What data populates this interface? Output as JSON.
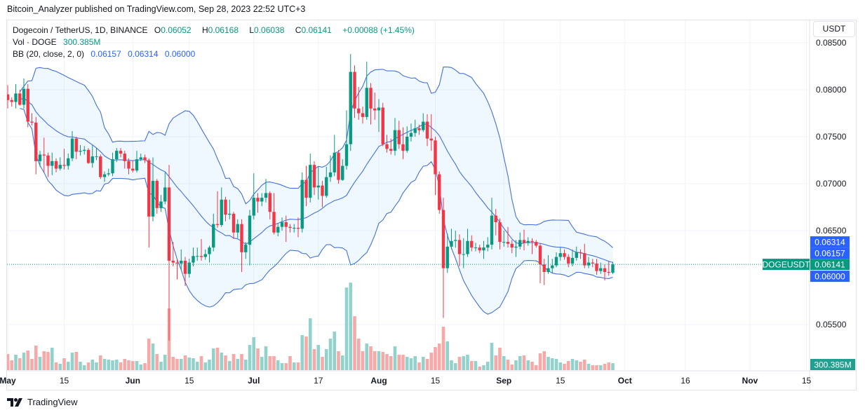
{
  "attribution": "Bitcoin_Analyzer published on TradingView.com, Sep 28, 2023 22:52 UTC+3",
  "legend": {
    "symbol": "Dogecoin / TetherUS, 1D, BINANCE",
    "o_label": "O",
    "o": "0.06052",
    "h_label": "H",
    "h": "0.06168",
    "l_label": "L",
    "l": "0.06038",
    "c_label": "C",
    "c": "0.06141",
    "change": "+0.00088 (+1.45%)",
    "vol_label": "Vol · DOGE",
    "vol": "300.385M",
    "bb_label": "BB (20, close, 2, 0)",
    "bb_basis": "0.06157",
    "bb_upper": "0.06314",
    "bb_lower": "0.06000"
  },
  "currency_button": "USDT",
  "footer_logo": "TradingView",
  "colors": {
    "up": "#089981",
    "down": "#f23645",
    "bb": "#2962ff",
    "vol_up": "#92d2cc",
    "vol_down": "#f7a9a7",
    "grid": "#f0f3fa"
  },
  "chart_data": {
    "type": "candlestick",
    "symbol": "DOGEUSDT",
    "interval": "1D",
    "date_start": "2023-05-01",
    "date_end": "2023-09-28",
    "ylim": [
      0.0515,
      0.0875
    ],
    "y_ticks": [
      "0.08500",
      "0.08000",
      "0.07500",
      "0.07000",
      "0.06500",
      "0.05500"
    ],
    "x_ticks": [
      {
        "label": "May",
        "date": "2023-05-01",
        "bold": true
      },
      {
        "label": "15",
        "date": "2023-05-15",
        "bold": false
      },
      {
        "label": "Jun",
        "date": "2023-06-01",
        "bold": true
      },
      {
        "label": "15",
        "date": "2023-06-15",
        "bold": false
      },
      {
        "label": "Jul",
        "date": "2023-07-01",
        "bold": true
      },
      {
        "label": "17",
        "date": "2023-07-17",
        "bold": false
      },
      {
        "label": "Aug",
        "date": "2023-08-01",
        "bold": true
      },
      {
        "label": "15",
        "date": "2023-08-15",
        "bold": false
      },
      {
        "label": "Sep",
        "date": "2023-09-01",
        "bold": true
      },
      {
        "label": "15",
        "date": "2023-09-15",
        "bold": false
      },
      {
        "label": "Oct",
        "date": "2023-10-01",
        "bold": true
      },
      {
        "label": "16",
        "date": "2023-10-16",
        "bold": false
      },
      {
        "label": "Nov",
        "date": "2023-11-01",
        "bold": true
      },
      {
        "label": "15",
        "date": "2023-11-15",
        "bold": false
      }
    ],
    "price_labels": {
      "bb_upper": "0.06314",
      "bb_basis": "0.06157",
      "last": "0.06141",
      "bb_lower": "0.06000",
      "symbol_tag": "DOGEUSDT",
      "volume": "300.385M"
    },
    "last_price": 0.06141,
    "bollinger": {
      "period": 20,
      "mult": 2
    },
    "ohlc": [
      [
        0.0795,
        0.0805,
        0.078,
        0.0789
      ],
      [
        0.0789,
        0.0792,
        0.0782,
        0.0787
      ],
      [
        0.0787,
        0.0806,
        0.078,
        0.0796
      ],
      [
        0.0796,
        0.08,
        0.0783,
        0.0784
      ],
      [
        0.0784,
        0.0812,
        0.078,
        0.0801
      ],
      [
        0.0801,
        0.0806,
        0.076,
        0.0766
      ],
      [
        0.0766,
        0.0775,
        0.0762,
        0.0765
      ],
      [
        0.0765,
        0.0771,
        0.071,
        0.0724
      ],
      [
        0.0724,
        0.0735,
        0.0718,
        0.0731
      ],
      [
        0.0731,
        0.0749,
        0.0712,
        0.073
      ],
      [
        0.073,
        0.0733,
        0.0707,
        0.0719
      ],
      [
        0.0719,
        0.0733,
        0.0709,
        0.0724
      ],
      [
        0.0724,
        0.0727,
        0.0712,
        0.0716
      ],
      [
        0.0716,
        0.0728,
        0.0714,
        0.072
      ],
      [
        0.072,
        0.0737,
        0.0715,
        0.0719
      ],
      [
        0.0719,
        0.0732,
        0.0715,
        0.0727
      ],
      [
        0.0727,
        0.0756,
        0.0724,
        0.0748
      ],
      [
        0.0748,
        0.075,
        0.0726,
        0.0734
      ],
      [
        0.0734,
        0.0741,
        0.073,
        0.0735
      ],
      [
        0.0735,
        0.074,
        0.0731,
        0.0736
      ],
      [
        0.0736,
        0.0738,
        0.0721,
        0.0722
      ],
      [
        0.0722,
        0.0741,
        0.0717,
        0.0729
      ],
      [
        0.0729,
        0.0738,
        0.0725,
        0.0729
      ],
      [
        0.0729,
        0.0731,
        0.0705,
        0.0707
      ],
      [
        0.0707,
        0.0713,
        0.0702,
        0.071
      ],
      [
        0.071,
        0.0716,
        0.0708,
        0.0711
      ],
      [
        0.0711,
        0.0733,
        0.0708,
        0.0726
      ],
      [
        0.0726,
        0.0738,
        0.0723,
        0.0735
      ],
      [
        0.0735,
        0.0738,
        0.0728,
        0.0732
      ],
      [
        0.0732,
        0.0735,
        0.0716,
        0.0724
      ],
      [
        0.0724,
        0.0727,
        0.071,
        0.0716
      ],
      [
        0.0716,
        0.0725,
        0.0712,
        0.0714
      ],
      [
        0.0714,
        0.0735,
        0.0712,
        0.0726
      ],
      [
        0.0726,
        0.0732,
        0.0724,
        0.0728
      ],
      [
        0.0728,
        0.0731,
        0.0722,
        0.0725
      ],
      [
        0.0725,
        0.0727,
        0.0632,
        0.0665
      ],
      [
        0.0665,
        0.0728,
        0.066,
        0.0703
      ],
      [
        0.0703,
        0.0705,
        0.0668,
        0.0674
      ],
      [
        0.0674,
        0.0688,
        0.067,
        0.0681
      ],
      [
        0.0681,
        0.0712,
        0.0678,
        0.0696
      ],
      [
        0.0696,
        0.072,
        0.0533,
        0.0618
      ],
      [
        0.0618,
        0.0638,
        0.0612,
        0.0616
      ],
      [
        0.0616,
        0.062,
        0.0598,
        0.0615
      ],
      [
        0.0615,
        0.063,
        0.0608,
        0.0618
      ],
      [
        0.0618,
        0.0622,
        0.0591,
        0.0604
      ],
      [
        0.0604,
        0.062,
        0.06,
        0.0616
      ],
      [
        0.0616,
        0.0632,
        0.0612,
        0.0623
      ],
      [
        0.0623,
        0.0632,
        0.0618,
        0.0623
      ],
      [
        0.0623,
        0.0641,
        0.0618,
        0.0622
      ],
      [
        0.0622,
        0.063,
        0.0619,
        0.0625
      ],
      [
        0.0625,
        0.0634,
        0.0616,
        0.0632
      ],
      [
        0.0632,
        0.0668,
        0.0628,
        0.0657
      ],
      [
        0.0657,
        0.0692,
        0.0653,
        0.0656
      ],
      [
        0.0656,
        0.0696,
        0.0654,
        0.0683
      ],
      [
        0.0683,
        0.0686,
        0.066,
        0.0667
      ],
      [
        0.0667,
        0.0683,
        0.0662,
        0.0668
      ],
      [
        0.0668,
        0.067,
        0.0641,
        0.0648
      ],
      [
        0.0648,
        0.0662,
        0.0642,
        0.0657
      ],
      [
        0.0657,
        0.0662,
        0.0606,
        0.0627
      ],
      [
        0.0627,
        0.0638,
        0.062,
        0.0635
      ],
      [
        0.0635,
        0.0672,
        0.0613,
        0.0666
      ],
      [
        0.0666,
        0.0711,
        0.0662,
        0.0685
      ],
      [
        0.0685,
        0.069,
        0.0669,
        0.0681
      ],
      [
        0.0681,
        0.069,
        0.0676,
        0.0685
      ],
      [
        0.0685,
        0.0705,
        0.068,
        0.069
      ],
      [
        0.069,
        0.0692,
        0.0662,
        0.067
      ],
      [
        0.067,
        0.069,
        0.0646,
        0.0648
      ],
      [
        0.0648,
        0.0658,
        0.0644,
        0.0654
      ],
      [
        0.0654,
        0.0664,
        0.065,
        0.0659
      ],
      [
        0.0659,
        0.0666,
        0.0638,
        0.0654
      ],
      [
        0.0654,
        0.0657,
        0.0648,
        0.0653
      ],
      [
        0.0653,
        0.0657,
        0.0648,
        0.0653
      ],
      [
        0.0653,
        0.0664,
        0.0643,
        0.0652
      ],
      [
        0.0652,
        0.0712,
        0.0648,
        0.0704
      ],
      [
        0.0704,
        0.0719,
        0.0676,
        0.0685
      ],
      [
        0.0685,
        0.0732,
        0.068,
        0.072
      ],
      [
        0.072,
        0.0724,
        0.0688,
        0.0696
      ],
      [
        0.0696,
        0.0718,
        0.0683,
        0.0698
      ],
      [
        0.0698,
        0.0703,
        0.0675,
        0.0687
      ],
      [
        0.0687,
        0.0718,
        0.0685,
        0.0707
      ],
      [
        0.0707,
        0.073,
        0.0702,
        0.0712
      ],
      [
        0.0712,
        0.0752,
        0.0708,
        0.0733
      ],
      [
        0.0733,
        0.0736,
        0.07,
        0.0704
      ],
      [
        0.0704,
        0.0726,
        0.0703,
        0.0719
      ],
      [
        0.0719,
        0.0778,
        0.0715,
        0.0742
      ],
      [
        0.0742,
        0.0838,
        0.0735,
        0.0819
      ],
      [
        0.0819,
        0.0826,
        0.077,
        0.078
      ],
      [
        0.078,
        0.0803,
        0.0768,
        0.0775
      ],
      [
        0.0775,
        0.0782,
        0.0764,
        0.0771
      ],
      [
        0.0771,
        0.083,
        0.0768,
        0.0802
      ],
      [
        0.0802,
        0.0807,
        0.0763,
        0.078
      ],
      [
        0.078,
        0.0797,
        0.0768,
        0.0778
      ],
      [
        0.0778,
        0.079,
        0.0755,
        0.0781
      ],
      [
        0.0781,
        0.0786,
        0.074,
        0.0742
      ],
      [
        0.0742,
        0.0752,
        0.0733,
        0.0737
      ],
      [
        0.0737,
        0.0748,
        0.0731,
        0.0735
      ],
      [
        0.0735,
        0.077,
        0.073,
        0.0757
      ],
      [
        0.0757,
        0.0767,
        0.0737,
        0.0742
      ],
      [
        0.0742,
        0.076,
        0.0726,
        0.0735
      ],
      [
        0.0735,
        0.0761,
        0.0733,
        0.075
      ],
      [
        0.075,
        0.0764,
        0.0745,
        0.0754
      ],
      [
        0.0754,
        0.0768,
        0.075,
        0.0759
      ],
      [
        0.0759,
        0.0763,
        0.0752,
        0.0757
      ],
      [
        0.0757,
        0.0775,
        0.0755,
        0.0766
      ],
      [
        0.0766,
        0.0774,
        0.074,
        0.0748
      ],
      [
        0.0748,
        0.0774,
        0.0735,
        0.0746
      ],
      [
        0.0746,
        0.075,
        0.0688,
        0.071
      ],
      [
        0.071,
        0.0713,
        0.0668,
        0.0672
      ],
      [
        0.0672,
        0.0685,
        0.0557,
        0.061
      ],
      [
        0.061,
        0.0647,
        0.0605,
        0.0633
      ],
      [
        0.0633,
        0.0652,
        0.063,
        0.0639
      ],
      [
        0.0639,
        0.065,
        0.0632,
        0.064
      ],
      [
        0.064,
        0.0646,
        0.0612,
        0.0625
      ],
      [
        0.0625,
        0.0642,
        0.061,
        0.0625
      ],
      [
        0.0625,
        0.0652,
        0.0622,
        0.0639
      ],
      [
        0.0639,
        0.0645,
        0.0628,
        0.0632
      ],
      [
        0.0632,
        0.0637,
        0.0628,
        0.0632
      ],
      [
        0.0632,
        0.0635,
        0.0626,
        0.0629
      ],
      [
        0.0629,
        0.0639,
        0.062,
        0.0632
      ],
      [
        0.0632,
        0.0643,
        0.0628,
        0.0635
      ],
      [
        0.0635,
        0.0685,
        0.063,
        0.0666
      ],
      [
        0.0666,
        0.0673,
        0.0645,
        0.0659
      ],
      [
        0.0659,
        0.0663,
        0.063,
        0.0638
      ],
      [
        0.0638,
        0.065,
        0.0633,
        0.0638
      ],
      [
        0.0638,
        0.0654,
        0.0632,
        0.0636
      ],
      [
        0.0636,
        0.064,
        0.0626,
        0.0632
      ],
      [
        0.0632,
        0.064,
        0.0622,
        0.0633
      ],
      [
        0.0633,
        0.0648,
        0.063,
        0.064
      ],
      [
        0.064,
        0.0651,
        0.0629,
        0.0637
      ],
      [
        0.0637,
        0.0643,
        0.0634,
        0.0639
      ],
      [
        0.0639,
        0.0642,
        0.0625,
        0.0638
      ],
      [
        0.0638,
        0.064,
        0.0632,
        0.0634
      ],
      [
        0.0634,
        0.0636,
        0.0594,
        0.0614
      ],
      [
        0.0614,
        0.062,
        0.0592,
        0.0606
      ],
      [
        0.0606,
        0.0624,
        0.0604,
        0.061
      ],
      [
        0.061,
        0.062,
        0.0605,
        0.0613
      ],
      [
        0.0613,
        0.0627,
        0.0611,
        0.0622
      ],
      [
        0.0622,
        0.0632,
        0.0618,
        0.0626
      ],
      [
        0.0626,
        0.063,
        0.0619,
        0.0622
      ],
      [
        0.0622,
        0.0625,
        0.0611,
        0.0615
      ],
      [
        0.0615,
        0.063,
        0.0612,
        0.0621
      ],
      [
        0.0621,
        0.0633,
        0.0618,
        0.0627
      ],
      [
        0.0627,
        0.063,
        0.062,
        0.0626
      ],
      [
        0.0626,
        0.0636,
        0.061,
        0.0613
      ],
      [
        0.0613,
        0.0622,
        0.061,
        0.0616
      ],
      [
        0.0616,
        0.062,
        0.0611,
        0.0615
      ],
      [
        0.0615,
        0.062,
        0.0603,
        0.0607
      ],
      [
        0.0607,
        0.0616,
        0.0604,
        0.061
      ],
      [
        0.061,
        0.0614,
        0.0597,
        0.0606
      ],
      [
        0.0606,
        0.0617,
        0.0602,
        0.06052
      ],
      [
        0.06052,
        0.06168,
        0.06038,
        0.06141
      ]
    ],
    "volume_millions": [
      690,
      420,
      660,
      510,
      750,
      840,
      480,
      1050,
      570,
      810,
      780,
      960,
      330,
      270,
      510,
      360,
      750,
      780,
      360,
      210,
      330,
      450,
      330,
      630,
      480,
      450,
      420,
      450,
      330,
      480,
      420,
      390,
      390,
      240,
      300,
      1350,
      1140,
      690,
      360,
      660,
      2640,
      570,
      480,
      480,
      630,
      540,
      510,
      360,
      600,
      330,
      450,
      930,
      960,
      750,
      630,
      390,
      690,
      480,
      690,
      450,
      1080,
      1410,
      930,
      570,
      1020,
      600,
      600,
      420,
      300,
      300,
      600,
      330,
      330,
      1500,
      1440,
      2220,
      900,
      1080,
      570,
      900,
      1350,
      1650,
      810,
      630,
      3540,
      3750,
      2310,
      1350,
      810,
      1140,
      1020,
      810,
      810,
      780,
      690,
      600,
      1020,
      660,
      660,
      570,
      510,
      600,
      330,
      570,
      480,
      750,
      990,
      1140,
      1860,
      1230,
      420,
      300,
      570,
      600,
      660,
      390,
      390,
      150,
      210,
      360,
      1170,
      630,
      960,
      600,
      450,
      240,
      420,
      600,
      630,
      420,
      360,
      210,
      720,
      810,
      570,
      510,
      480,
      330,
      270,
      390,
      480,
      420,
      360,
      450,
      270,
      210,
      210,
      210,
      270,
      330,
      300.385
    ]
  }
}
